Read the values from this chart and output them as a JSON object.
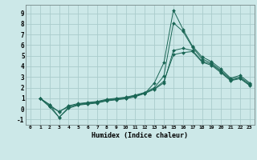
{
  "title": "",
  "xlabel": "Humidex (Indice chaleur)",
  "bg_color": "#cce8e8",
  "grid_color": "#aacccc",
  "line_color": "#1a6655",
  "xlim": [
    -0.5,
    23.5
  ],
  "ylim": [
    -1.5,
    9.8
  ],
  "xticks": [
    0,
    1,
    2,
    3,
    4,
    5,
    6,
    7,
    8,
    9,
    10,
    11,
    12,
    13,
    14,
    15,
    16,
    17,
    18,
    19,
    20,
    21,
    22,
    23
  ],
  "yticks": [
    -1,
    0,
    1,
    2,
    3,
    4,
    5,
    6,
    7,
    8,
    9
  ],
  "series": [
    [
      1,
      0.4,
      -0.8,
      0.15,
      0.45,
      0.55,
      0.65,
      0.85,
      0.95,
      1.05,
      1.25,
      1.45,
      2.45,
      4.35,
      9.3,
      7.5,
      5.9,
      4.9,
      4.45,
      3.75,
      2.9,
      3.15,
      2.45
    ],
    [
      1,
      0.4,
      -0.3,
      0.3,
      0.5,
      0.6,
      0.7,
      0.9,
      1.0,
      1.1,
      1.3,
      1.55,
      2.0,
      3.1,
      8.1,
      7.3,
      5.8,
      4.7,
      4.3,
      3.6,
      2.8,
      3.0,
      2.35
    ],
    [
      1,
      0.2,
      -0.8,
      0.05,
      0.35,
      0.45,
      0.55,
      0.75,
      0.85,
      0.95,
      1.15,
      1.45,
      1.85,
      2.45,
      5.5,
      5.7,
      5.5,
      4.5,
      4.2,
      3.5,
      2.7,
      2.9,
      2.25
    ],
    [
      1,
      0.25,
      -0.25,
      0.2,
      0.4,
      0.5,
      0.6,
      0.8,
      0.9,
      1.0,
      1.2,
      1.5,
      1.9,
      2.6,
      5.1,
      5.3,
      5.4,
      4.4,
      4.1,
      3.4,
      2.65,
      2.85,
      2.2
    ]
  ]
}
